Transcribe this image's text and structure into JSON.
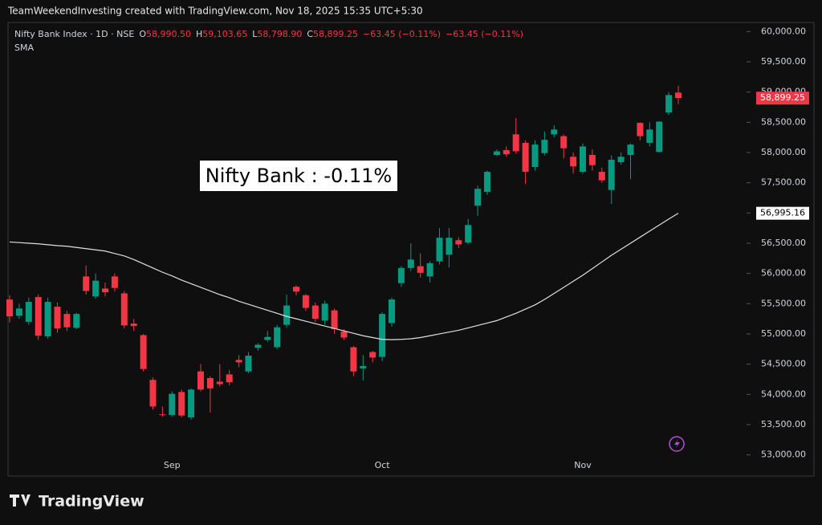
{
  "chart_data": {
    "type": "candlestick",
    "title": "TeamWeekendInvesting created with TradingView.com, Nov 18, 2025 15:35 UTC+5:30",
    "legend": {
      "symbol": "Nifty Bank Index · 1D · NSE",
      "open_prefix": "O",
      "open": "58,990.50",
      "high_prefix": "H",
      "high": "59,103.65",
      "low_prefix": "L",
      "low": "58,798.90",
      "close_prefix": "C",
      "close": "58,899.25",
      "change": "−63.45 (−0.11%)",
      "change_repeat": "−63.45 (−0.11%)",
      "indicator": "SMA"
    },
    "annotation": "Nifty Bank : -0.11%",
    "last_price_label": "58,899.25",
    "sma_last_label": "56,995.16",
    "brand": "TradingView",
    "categories": [
      null,
      null,
      null,
      null,
      null,
      null,
      null,
      null,
      null,
      null,
      null,
      null,
      null,
      null,
      null,
      null,
      null,
      "Sep",
      null,
      null,
      null,
      null,
      null,
      null,
      null,
      null,
      null,
      null,
      null,
      null,
      null,
      null,
      null,
      null,
      null,
      null,
      null,
      null,
      null,
      "Oct",
      null,
      null,
      null,
      null,
      null,
      null,
      null,
      null,
      null,
      null,
      null,
      null,
      null,
      null,
      null,
      null,
      null,
      null,
      null,
      null,
      "Nov",
      null,
      null,
      null,
      null,
      null,
      null,
      null,
      null,
      null,
      null
    ],
    "up_color": "#089981",
    "down_color": "#f23645",
    "open": [
      55570,
      55300,
      55200,
      55610,
      54960,
      55450,
      55330,
      55100,
      55950,
      55620,
      55750,
      55950,
      55670,
      55170,
      54980,
      54240,
      53670,
      53660,
      54040,
      53620,
      54380,
      54270,
      54210,
      54330,
      54570,
      54380,
      54770,
      54900,
      54780,
      55150,
      55780,
      55640,
      55470,
      55220,
      55390,
      55040,
      54780,
      54430,
      54700,
      54620,
      55180,
      55840,
      56090,
      56120,
      55950,
      56200,
      56310,
      56550,
      56510,
      57120,
      57350,
      57960,
      58040,
      58300,
      58160,
      57760,
      57990,
      58300,
      58270,
      57930,
      57680,
      57960,
      57680,
      57380,
      57840,
      57960,
      58490,
      58160,
      58010,
      58660,
      58990.5
    ],
    "high": [
      55640,
      55500,
      55600,
      55650,
      55600,
      55520,
      55380,
      55350,
      56130,
      56000,
      55850,
      56000,
      55710,
      55250,
      55000,
      54280,
      53800,
      54050,
      54080,
      54100,
      54500,
      54300,
      54500,
      54400,
      54650,
      54700,
      54850,
      55050,
      55150,
      55650,
      55800,
      55660,
      55520,
      55550,
      55420,
      55080,
      54800,
      54650,
      54720,
      55360,
      55600,
      56120,
      56500,
      56330,
      56200,
      56750,
      56750,
      56600,
      56900,
      57450,
      57700,
      58050,
      58100,
      58570,
      58200,
      58200,
      58350,
      58450,
      58300,
      58000,
      58150,
      58050,
      57750,
      57950,
      58000,
      58150,
      58500,
      58500,
      58520,
      59000,
      59103.65
    ],
    "low": [
      55190,
      55250,
      55150,
      54900,
      54920,
      55020,
      55050,
      55080,
      55650,
      55580,
      55620,
      55700,
      55090,
      55050,
      54380,
      53750,
      53630,
      53630,
      53620,
      53580,
      54050,
      53700,
      54130,
      54150,
      54450,
      54350,
      54720,
      54870,
      54750,
      55100,
      55640,
      55380,
      55200,
      55150,
      55000,
      54900,
      54300,
      54230,
      54530,
      54550,
      55120,
      55780,
      56040,
      55930,
      55850,
      56150,
      56100,
      56420,
      56480,
      56950,
      57300,
      57950,
      57930,
      57980,
      57480,
      57700,
      57950,
      58250,
      57900,
      57650,
      57650,
      57700,
      57500,
      57150,
      57800,
      57560,
      58200,
      58100,
      58000,
      58620,
      58798.9
    ],
    "close": [
      55290,
      55420,
      55530,
      54970,
      55530,
      55090,
      55110,
      55330,
      55710,
      55880,
      55690,
      55760,
      55140,
      55130,
      54420,
      53800,
      53660,
      54010,
      53650,
      54080,
      54080,
      54100,
      54170,
      54200,
      54530,
      54640,
      54820,
      54950,
      55110,
      55470,
      55700,
      55430,
      55250,
      55500,
      55080,
      54940,
      54380,
      54470,
      54610,
      55330,
      55570,
      56090,
      56230,
      56010,
      56170,
      56590,
      56590,
      56480,
      56800,
      57400,
      57680,
      58020,
      57970,
      58020,
      57680,
      58130,
      58210,
      58380,
      58070,
      57770,
      58100,
      57790,
      57540,
      57880,
      57930,
      58130,
      58270,
      58380,
      58510,
      58950,
      58899.25
    ],
    "series": [
      {
        "name": "SMA",
        "color": "#e0e0e0",
        "values": [
          56520,
          56510,
          56500,
          56490,
          56475,
          56460,
          56450,
          56430,
          56410,
          56390,
          56370,
          56330,
          56290,
          56230,
          56160,
          56090,
          56020,
          55960,
          55890,
          55830,
          55770,
          55710,
          55650,
          55600,
          55540,
          55490,
          55440,
          55390,
          55340,
          55290,
          55250,
          55210,
          55170,
          55130,
          55090,
          55050,
          55010,
          54970,
          54940,
          54910,
          54905,
          54910,
          54920,
          54940,
          54970,
          55000,
          55030,
          55060,
          55100,
          55140,
          55180,
          55220,
          55280,
          55340,
          55410,
          55480,
          55570,
          55670,
          55770,
          55870,
          55970,
          56080,
          56190,
          56300,
          56400,
          56500,
          56600,
          56700,
          56800,
          56900,
          56995.16
        ]
      }
    ],
    "ylim": [
      52650,
      60150
    ],
    "yticks": [
      {
        "value": 53000,
        "label": "53,000.00"
      },
      {
        "value": 53500,
        "label": "53,500.00"
      },
      {
        "value": 54000,
        "label": "54,000.00"
      },
      {
        "value": 54500,
        "label": "54,500.00"
      },
      {
        "value": 55000,
        "label": "55,000.00"
      },
      {
        "value": 55500,
        "label": "55,500.00"
      },
      {
        "value": 56000,
        "label": "56,000.00"
      },
      {
        "value": 56500,
        "label": "56,500.00"
      },
      {
        "value": 57000,
        "label": "57,000.00"
      },
      {
        "value": 57500,
        "label": "57,500.00"
      },
      {
        "value": 58000,
        "label": "58,000.00"
      },
      {
        "value": 58500,
        "label": "58,500.00"
      },
      {
        "value": 59000,
        "label": "59,000.00"
      },
      {
        "value": 59500,
        "label": "59,500.00"
      },
      {
        "value": 60000,
        "label": "60,000.00"
      }
    ]
  }
}
